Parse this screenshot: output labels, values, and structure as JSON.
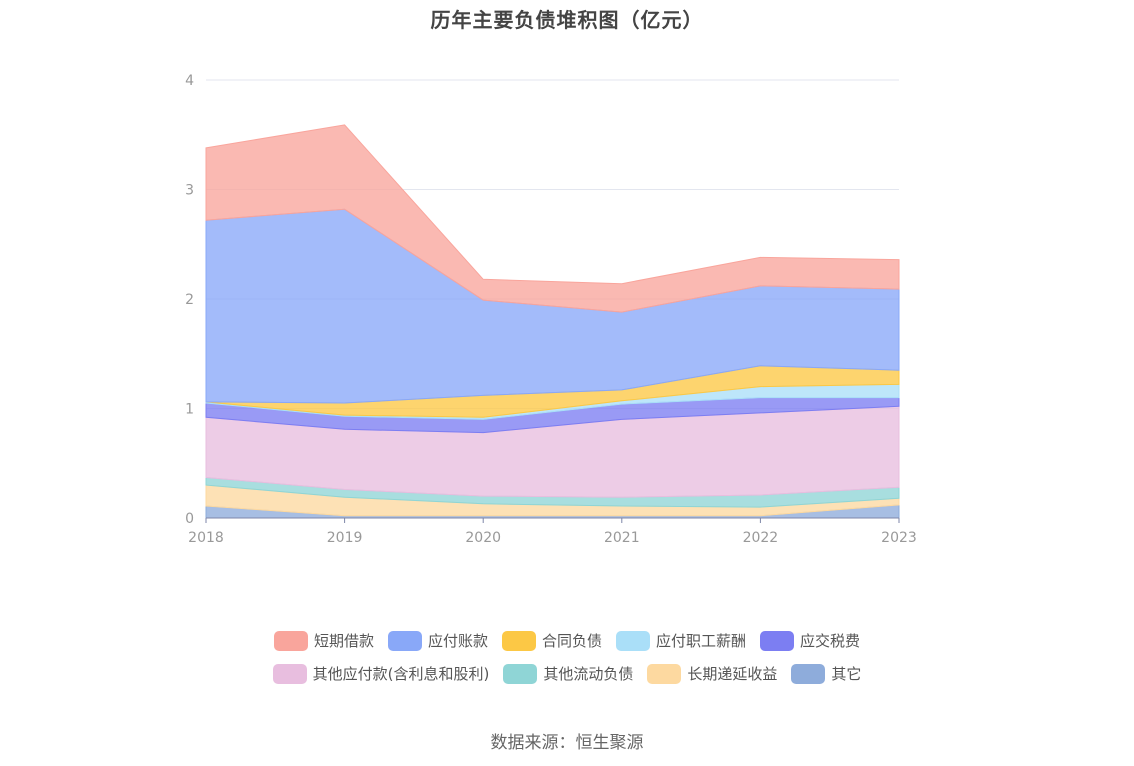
{
  "title": "历年主要负债堆积图（亿元）",
  "source_text": "数据来源：恒生聚源",
  "chart_data": {
    "type": "area",
    "stacked": true,
    "title": "历年主要负债堆积图（亿元）",
    "xlabel": "",
    "ylabel": "",
    "x": [
      "2018",
      "2019",
      "2020",
      "2021",
      "2022",
      "2023"
    ],
    "ylim": [
      0,
      4
    ],
    "yticks": [
      "0",
      "1",
      "2",
      "3",
      "4"
    ],
    "grid": true,
    "legend_position": "bottom",
    "series": [
      {
        "name": "其它",
        "color": "#8eacdb",
        "values": [
          0.11,
          0.02,
          0.02,
          0.02,
          0.02,
          0.12
        ]
      },
      {
        "name": "长期递延收益",
        "color": "#fdd9a0",
        "values": [
          0.19,
          0.17,
          0.11,
          0.09,
          0.08,
          0.06
        ]
      },
      {
        "name": "其他流动负债",
        "color": "#8fd5d6",
        "values": [
          0.07,
          0.07,
          0.07,
          0.08,
          0.11,
          0.1
        ]
      },
      {
        "name": "其他应付款(含利息和股利)",
        "color": "#e8bedf",
        "values": [
          0.55,
          0.55,
          0.58,
          0.71,
          0.75,
          0.74
        ]
      },
      {
        "name": "应交税费",
        "color": "#7c7ef2",
        "values": [
          0.13,
          0.12,
          0.12,
          0.14,
          0.14,
          0.08
        ]
      },
      {
        "name": "应付职工薪酬",
        "color": "#aadff8",
        "values": [
          0.01,
          0.01,
          0.02,
          0.03,
          0.1,
          0.12
        ]
      },
      {
        "name": "合同负债",
        "color": "#fcc845",
        "values": [
          0.0,
          0.11,
          0.2,
          0.1,
          0.19,
          0.13
        ]
      },
      {
        "name": "应付账款",
        "color": "#89a8f8",
        "values": [
          1.66,
          1.77,
          0.87,
          0.71,
          0.73,
          0.74
        ]
      },
      {
        "name": "短期借款",
        "color": "#f9a59c",
        "values": [
          0.66,
          0.77,
          0.19,
          0.26,
          0.26,
          0.27
        ]
      }
    ]
  },
  "legend": {
    "row1": [
      "短期借款",
      "应付账款",
      "合同负债",
      "应付职工薪酬",
      "应交税费"
    ],
    "row2": [
      "其他应付款(含利息和股利)",
      "其他流动负债",
      "长期递延收益",
      "其它"
    ],
    "colors": {
      "短期借款": "#f9a59c",
      "应付账款": "#89a8f8",
      "合同负债": "#fcc845",
      "应付职工薪酬": "#aadff8",
      "应交税费": "#7c7ef2",
      "其他应付款(含利息和股利)": "#e8bedf",
      "其他流动负债": "#8fd5d6",
      "长期递延收益": "#fdd9a0",
      "其它": "#8eacdb"
    }
  }
}
